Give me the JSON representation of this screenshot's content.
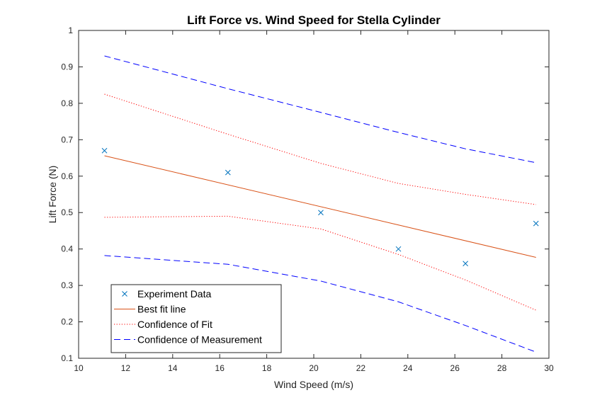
{
  "chart_data": {
    "type": "line",
    "title": "Lift Force vs. Wind Speed for Stella Cylinder",
    "xlabel": "Wind Speed (m/s)",
    "ylabel": "Lift Force (N)",
    "xlim": [
      10,
      30
    ],
    "ylim": [
      0.1,
      1
    ],
    "xticks": [
      10,
      12,
      14,
      16,
      18,
      20,
      22,
      24,
      26,
      28,
      30
    ],
    "yticks": [
      0.1,
      0.2,
      0.3,
      0.4,
      0.5,
      0.6,
      0.7,
      0.8,
      0.9,
      1
    ],
    "grid": false,
    "legend_position": "bottom-left",
    "series": [
      {
        "name": "Experiment Data",
        "style": "marker-x",
        "color": "#0072BD",
        "x": [
          11.1,
          16.35,
          20.3,
          23.6,
          26.45,
          29.45
        ],
        "y": [
          0.67,
          0.61,
          0.5,
          0.4,
          0.36,
          0.47
        ]
      },
      {
        "name": "Best fit line",
        "style": "solid",
        "color": "#D95319",
        "x": [
          11.1,
          29.45
        ],
        "y": [
          0.656,
          0.377
        ]
      },
      {
        "name": "Confidence of Fit",
        "style": "dotted",
        "color": "#FF0000",
        "x": [
          11.1,
          16.35,
          20.3,
          23.6,
          26.45,
          29.45
        ],
        "y": [
          0.825,
          0.715,
          0.635,
          0.58,
          0.55,
          0.522
        ]
      },
      {
        "name": "",
        "style": "dotted",
        "color": "#FF0000",
        "x": [
          11.1,
          16.35,
          20.3,
          23.6,
          26.45,
          29.45
        ],
        "y": [
          0.487,
          0.49,
          0.455,
          0.385,
          0.315,
          0.232
        ]
      },
      {
        "name": "Confidence of Measurement",
        "style": "dashed",
        "color": "#0000FF",
        "x": [
          11.1,
          16.35,
          20.3,
          23.6,
          26.45,
          29.45
        ],
        "y": [
          0.93,
          0.84,
          0.775,
          0.72,
          0.675,
          0.637
        ]
      },
      {
        "name": "",
        "style": "dashed",
        "color": "#0000FF",
        "x": [
          11.1,
          16.35,
          20.3,
          23.6,
          26.45,
          29.45
        ],
        "y": [
          0.382,
          0.358,
          0.312,
          0.255,
          0.19,
          0.117
        ]
      }
    ]
  }
}
